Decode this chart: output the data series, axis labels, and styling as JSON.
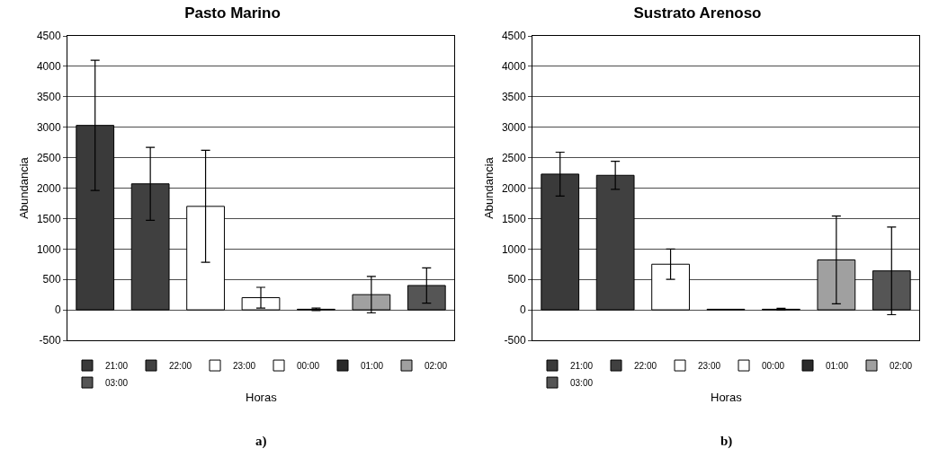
{
  "chart_data": [
    {
      "type": "bar",
      "title": "Pasto Marino",
      "xlabel": "Horas",
      "ylabel": "Abundancia",
      "categories": [
        null,
        null,
        null,
        null,
        null,
        null,
        null
      ],
      "series": [
        {
          "name": "21:00",
          "color": "#3a3a3a",
          "values": [
            3030,
            null,
            null,
            null,
            null,
            null,
            null
          ],
          "errors": [
            1070,
            null,
            null,
            null,
            null,
            null,
            null
          ]
        },
        {
          "name": "22:00",
          "color": "#404040",
          "values": [
            null,
            2070,
            null,
            null,
            null,
            null,
            null
          ],
          "errors": [
            null,
            600,
            null,
            null,
            null,
            null,
            null
          ]
        },
        {
          "name": "23:00",
          "color": "#ffffff",
          "values": [
            null,
            null,
            1700,
            null,
            null,
            null,
            null
          ],
          "errors": [
            null,
            null,
            920,
            null,
            null,
            null,
            null
          ]
        },
        {
          "name": "00:00",
          "color": "#ffffff",
          "values": [
            null,
            null,
            null,
            200,
            null,
            null,
            null
          ],
          "errors": [
            null,
            null,
            null,
            170,
            null,
            null,
            null
          ]
        },
        {
          "name": "01:00",
          "color": "#2a2a2a",
          "values": [
            null,
            null,
            null,
            null,
            10,
            null,
            null
          ],
          "errors": [
            null,
            null,
            null,
            null,
            20,
            null,
            null
          ]
        },
        {
          "name": "02:00",
          "color": "#a0a0a0",
          "values": [
            null,
            null,
            null,
            null,
            null,
            250,
            null
          ],
          "errors": [
            null,
            null,
            null,
            null,
            null,
            300,
            null
          ]
        },
        {
          "name": "03:00",
          "color": "#555555",
          "values": [
            null,
            null,
            null,
            null,
            null,
            null,
            400
          ],
          "errors": [
            null,
            null,
            null,
            null,
            null,
            null,
            290
          ]
        }
      ],
      "ylim": [
        -500,
        4500
      ],
      "yticks": [
        -500,
        0,
        500,
        1000,
        1500,
        2000,
        2500,
        3000,
        3500,
        4000,
        4500
      ],
      "grid": "y",
      "legend": "bottom",
      "tick_labels": "y",
      "annotations": [
        "a)"
      ]
    },
    {
      "type": "bar",
      "title": "Sustrato Arenoso",
      "xlabel": "Horas",
      "ylabel": "Abundancia",
      "categories": [
        null,
        null,
        null,
        null,
        null,
        null,
        null
      ],
      "series": [
        {
          "name": "21:00",
          "color": "#3a3a3a",
          "values": [
            2230,
            null,
            null,
            null,
            null,
            null,
            null
          ],
          "errors": [
            360,
            null,
            null,
            null,
            null,
            null,
            null
          ]
        },
        {
          "name": "22:00",
          "color": "#404040",
          "values": [
            null,
            2210,
            null,
            null,
            null,
            null,
            null
          ],
          "errors": [
            null,
            230,
            null,
            null,
            null,
            null,
            null
          ]
        },
        {
          "name": "23:00",
          "color": "#ffffff",
          "values": [
            null,
            null,
            750,
            null,
            null,
            null,
            null
          ],
          "errors": [
            null,
            null,
            250,
            null,
            null,
            null,
            null
          ]
        },
        {
          "name": "00:00",
          "color": "#ffffff",
          "values": [
            null,
            null,
            null,
            10,
            null,
            null,
            null
          ],
          "errors": [
            null,
            null,
            null,
            null,
            null,
            null,
            null
          ]
        },
        {
          "name": "01:00",
          "color": "#2a2a2a",
          "values": [
            null,
            null,
            null,
            null,
            10,
            null,
            null
          ],
          "errors": [
            null,
            null,
            null,
            null,
            15,
            null,
            null
          ]
        },
        {
          "name": "02:00",
          "color": "#a0a0a0",
          "values": [
            null,
            null,
            null,
            null,
            null,
            820,
            null
          ],
          "errors": [
            null,
            null,
            null,
            null,
            null,
            720,
            null
          ]
        },
        {
          "name": "03:00",
          "color": "#555555",
          "values": [
            null,
            null,
            null,
            null,
            null,
            null,
            640
          ],
          "errors": [
            null,
            null,
            null,
            null,
            null,
            null,
            720
          ]
        }
      ],
      "ylim": [
        -500,
        4500
      ],
      "yticks": [
        -500,
        0,
        500,
        1000,
        1500,
        2000,
        2500,
        3000,
        3500,
        4000,
        4500
      ],
      "grid": "y",
      "legend": "bottom",
      "tick_labels": "y",
      "annotations": [
        "b)"
      ]
    }
  ]
}
